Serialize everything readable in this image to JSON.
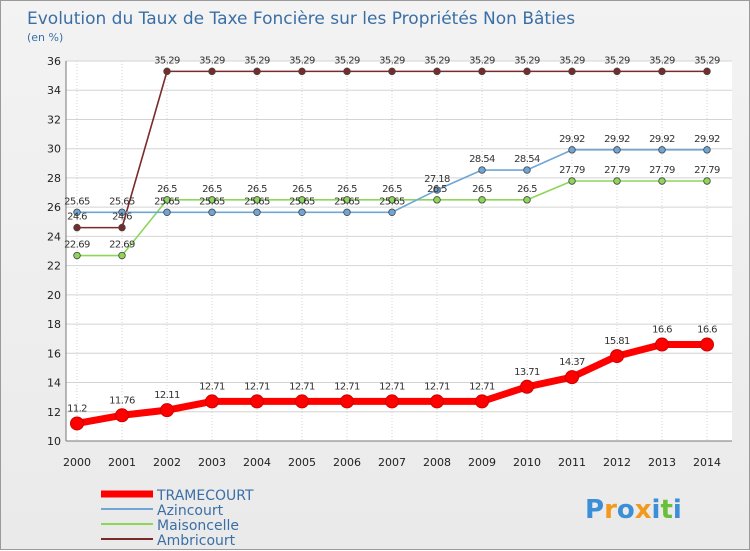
{
  "chart_data": {
    "type": "line",
    "title": "Evolution du Taux de Taxe Foncière sur les Propriétés Non Bâties",
    "ylabel": "(en %)",
    "xlabel": "",
    "ylim": [
      10,
      36
    ],
    "yticks": [
      10,
      12,
      14,
      16,
      18,
      20,
      22,
      24,
      26,
      28,
      30,
      32,
      34,
      36
    ],
    "categories": [
      "2000",
      "2001",
      "2002",
      "2003",
      "2004",
      "2005",
      "2006",
      "2007",
      "2008",
      "2009",
      "2010",
      "2011",
      "2012",
      "2013",
      "2014"
    ],
    "grid": true,
    "legend_position": "bottom-left",
    "series": [
      {
        "name": "TRAMECOURT",
        "color": "#ff0000",
        "values": [
          11.2,
          11.76,
          12.11,
          12.71,
          12.71,
          12.71,
          12.71,
          12.71,
          12.71,
          12.71,
          13.71,
          14.37,
          15.81,
          16.6,
          16.6
        ],
        "labels": [
          "11.2",
          "11.76",
          "12.11",
          "12.71",
          "12.71",
          "12.71",
          "12.71",
          "12.71",
          "12.71",
          "12.71",
          "13.71",
          "14.37",
          "15.81",
          "16.6",
          "16.6"
        ]
      },
      {
        "name": "Azincourt",
        "color": "#6fa6d6",
        "values": [
          25.65,
          25.65,
          25.65,
          25.65,
          25.65,
          25.65,
          25.65,
          25.65,
          27.18,
          28.54,
          28.54,
          29.92,
          29.92,
          29.92,
          29.92
        ],
        "labels": [
          "25.65",
          "25.65",
          "25.65",
          "25.65",
          "25.65",
          "25.65",
          "25.65",
          "25.65",
          "27.18",
          "28.54",
          "28.54",
          "29.92",
          "29.92",
          "29.92",
          "29.92"
        ]
      },
      {
        "name": "Maisoncelle",
        "color": "#8ed65a",
        "values": [
          22.69,
          22.69,
          26.5,
          26.5,
          26.5,
          26.5,
          26.5,
          26.5,
          26.5,
          26.5,
          26.5,
          27.79,
          27.79,
          27.79,
          27.79
        ],
        "labels": [
          "22.69",
          "22.69",
          "26.5",
          "26.5",
          "26.5",
          "26.5",
          "26.5",
          "26.5",
          "26.5",
          "26.5",
          "26.5",
          "27.79",
          "27.79",
          "27.79",
          "27.79"
        ]
      },
      {
        "name": "Ambricourt",
        "color": "#7a2a2a",
        "values": [
          24.6,
          24.6,
          35.29,
          35.29,
          35.29,
          35.29,
          35.29,
          35.29,
          35.29,
          35.29,
          35.29,
          35.29,
          35.29,
          35.29,
          35.29
        ],
        "labels": [
          "24.6",
          "24.6",
          "35.29",
          "35.29",
          "35.29",
          "35.29",
          "35.29",
          "35.29",
          "35.29",
          "35.29",
          "35.29",
          "35.29",
          "35.29",
          "35.29",
          "35.29"
        ]
      }
    ]
  },
  "logo": {
    "text": "Proxiti",
    "letters": [
      "P",
      "r",
      "o",
      "x",
      "i",
      "t",
      "i"
    ],
    "colors": [
      "#3a8fd6",
      "#f29a1e",
      "#3a8fd6",
      "#f29a1e",
      "#3a8fd6",
      "#6abf3a",
      "#3a8fd6"
    ]
  }
}
